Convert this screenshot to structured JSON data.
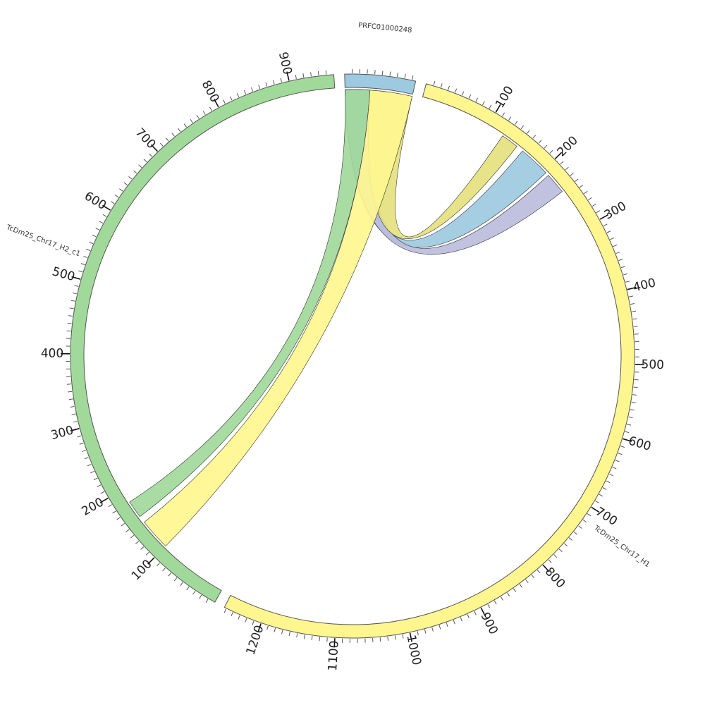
{
  "chart_data": {
    "type": "chord",
    "segments": [
      {
        "name": "PRFC01000248",
        "length": 95,
        "color": "#9ecae1"
      },
      {
        "name": "TcDm25_Chr17_H1",
        "length": 1253,
        "color": "#fff68f"
      },
      {
        "name": "TcDm25_Chr17_H2_c1",
        "length": 960,
        "color": "#a1d99b"
      }
    ],
    "major_tick_interval": 100,
    "minor_tick_interval": 10,
    "links": [
      {
        "source": {
          "segment": 0,
          "start": 0,
          "end": 35
        },
        "target": {
          "segment": 1,
          "start": 160,
          "end": 205
        },
        "color": "#9ecae1"
      },
      {
        "source": {
          "segment": 0,
          "start": 0,
          "end": 35
        },
        "target": {
          "segment": 1,
          "start": 210,
          "end": 240
        },
        "color": "#bcbddc"
      },
      {
        "source": {
          "segment": 0,
          "start": 35,
          "end": 95
        },
        "target": {
          "segment": 1,
          "start": 125,
          "end": 150
        },
        "color": "#e4e17f"
      },
      {
        "source": {
          "segment": 0,
          "start": 0,
          "end": 35
        },
        "target": {
          "segment": 2,
          "start": 155,
          "end": 180
        },
        "color": "#a1d99b"
      },
      {
        "source": {
          "segment": 0,
          "start": 35,
          "end": 95
        },
        "target": {
          "segment": 2,
          "start": 100,
          "end": 145
        },
        "color": "#fff68f"
      }
    ]
  }
}
